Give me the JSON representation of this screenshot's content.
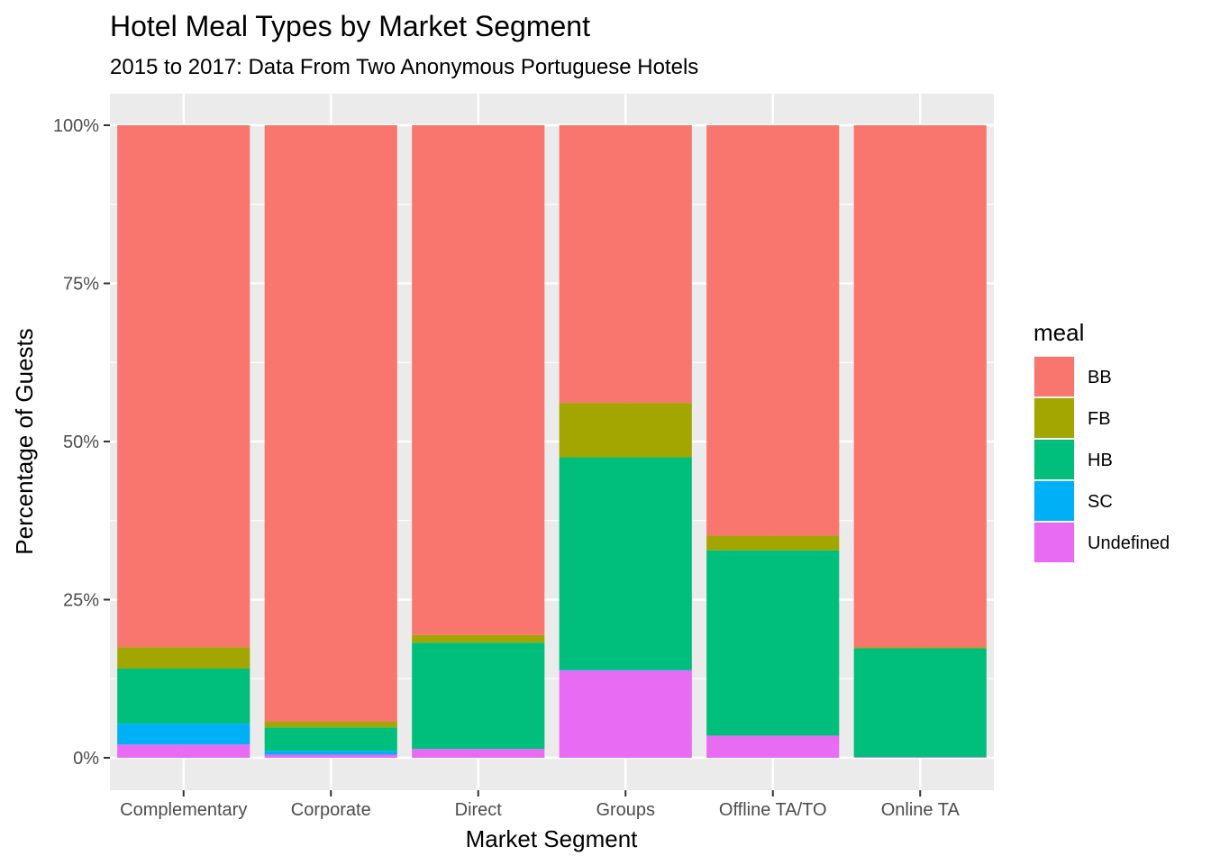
{
  "chart_data": {
    "type": "bar",
    "stacked": true,
    "normalized": true,
    "title": "Hotel Meal Types by Market Segment",
    "subtitle": "2015 to 2017: Data From Two Anonymous Portuguese Hotels",
    "xlabel": "Market Segment",
    "ylabel": "Percentage of Guests",
    "ylim": [
      0,
      1
    ],
    "yticks": [
      0,
      0.25,
      0.5,
      0.75,
      1.0
    ],
    "ytick_labels": [
      "0%",
      "25%",
      "50%",
      "75%",
      "100%"
    ],
    "grid": true,
    "legend_position": "right",
    "legend_title": "meal",
    "categories": [
      "Complementary",
      "Corporate",
      "Direct",
      "Groups",
      "Offline TA/TO",
      "Online TA"
    ],
    "series": [
      {
        "name": "Undefined",
        "color": "#E76BF3",
        "values": [
          0.021,
          0.005,
          0.014,
          0.138,
          0.035,
          0.001
        ]
      },
      {
        "name": "SC",
        "color": "#00B0F6",
        "values": [
          0.033,
          0.006,
          0.0,
          0.001,
          0.0,
          0.0
        ]
      },
      {
        "name": "HB",
        "color": "#00BF7D",
        "values": [
          0.087,
          0.037,
          0.168,
          0.336,
          0.293,
          0.172
        ]
      },
      {
        "name": "FB",
        "color": "#A3A500",
        "values": [
          0.034,
          0.009,
          0.012,
          0.086,
          0.023,
          0.002
        ]
      },
      {
        "name": "BB",
        "color": "#F8766D",
        "values": [
          0.825,
          0.943,
          0.806,
          0.439,
          0.649,
          0.825
        ]
      }
    ],
    "legend_order": [
      "BB",
      "FB",
      "HB",
      "SC",
      "Undefined"
    ]
  }
}
